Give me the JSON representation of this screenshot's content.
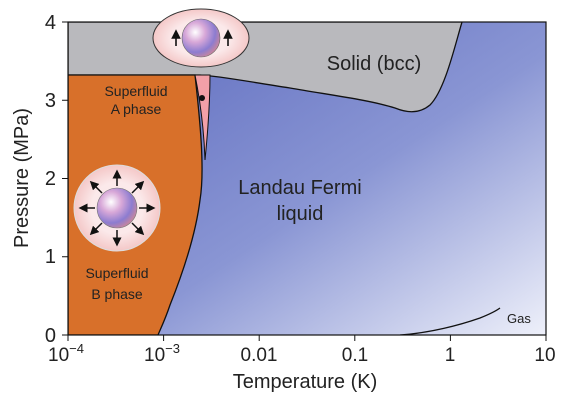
{
  "axes": {
    "xlabel": "Temperature (K)",
    "ylabel": "Pressure (MPa)",
    "x_ticks": [
      {
        "base": "10",
        "exp": "−4"
      },
      {
        "base": "10",
        "exp": "−3"
      },
      {
        "base": "0.01",
        "exp": ""
      },
      {
        "base": "0.1",
        "exp": ""
      },
      {
        "base": "1",
        "exp": ""
      },
      {
        "base": "10",
        "exp": ""
      }
    ],
    "y_ticks": [
      "0",
      "1",
      "2",
      "3",
      "4"
    ],
    "x_scale": "log",
    "x_range_K": [
      0.0001,
      10
    ],
    "y_range_MPa": [
      0,
      4
    ]
  },
  "regions": {
    "solid": "Solid (bcc)",
    "a_phase_line1": "Superfluid",
    "a_phase_line2": "A phase",
    "b_phase_line1": "Superfluid",
    "b_phase_line2": "B phase",
    "fermi_line1": "Landau Fermi",
    "fermi_line2": "liquid",
    "gas": "Gas"
  },
  "colors": {
    "superfluid_b": "#d8702a",
    "superfluid_a": "#f2a0a8",
    "solid": "#b8b8bc",
    "fermi_dark": "#5d6cc0",
    "fermi_light": "#e8ecf8"
  },
  "icons": {
    "a_phase_icon": "sphere-with-two-vertical-arrows-icon",
    "b_phase_icon": "sphere-with-radial-arrows-icon"
  }
}
